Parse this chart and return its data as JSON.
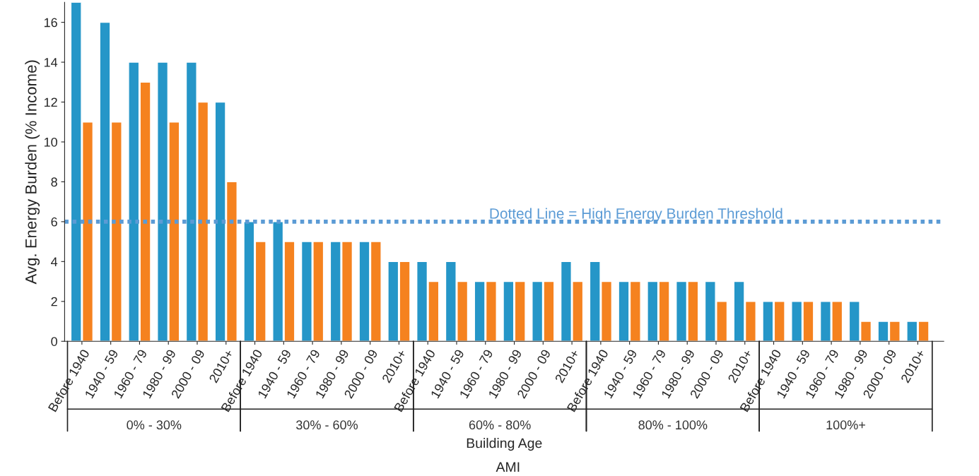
{
  "chart_data": {
    "type": "bar",
    "xlabel": "Building Age",
    "ylabel": "Avg. Energy Burden (% Income)",
    "categories": [
      "Before 1940",
      "1940 - 59",
      "1960 - 79",
      "1980 - 99",
      "2000 - 09",
      "2010+",
      "Before 1940",
      "1940 - 59",
      "1960 - 79",
      "1980 - 99",
      "2000 - 09",
      "2010+",
      "Before 1940",
      "1940 - 59",
      "1960 - 79",
      "1980 - 99",
      "2000 - 09",
      "2010+",
      "Before 1940",
      "1940 - 59",
      "1960 - 79",
      "1980 - 99",
      "2000 - 09",
      "2010+",
      "Before 1940",
      "1940 - 59",
      "1960 - 79",
      "1980 - 99",
      "2000 - 09",
      "2010+"
    ],
    "series": [
      {
        "color": "#2596c8",
        "values": [
          17,
          16,
          14,
          14,
          14,
          12,
          6,
          6,
          5,
          5,
          5,
          4,
          4,
          4,
          3,
          3,
          3,
          4,
          4,
          3,
          3,
          3,
          3,
          3,
          2,
          2,
          2,
          2,
          1,
          1
        ]
      },
      {
        "color": "#f5821f",
        "values": [
          11,
          11,
          13,
          11,
          12,
          8,
          5,
          5,
          5,
          5,
          5,
          4,
          3,
          3,
          3,
          3,
          3,
          3,
          3,
          3,
          3,
          3,
          2,
          2,
          2,
          2,
          2,
          1,
          1,
          1
        ]
      }
    ],
    "ylim": [
      0,
      17
    ],
    "yticks": [
      0,
      2,
      4,
      6,
      8,
      10,
      12,
      14,
      16
    ],
    "ref_lines": [
      {
        "axis": "y",
        "value": 6,
        "label": "Dotted Line = High Energy Burden Threshold",
        "color": "#5b9bd5",
        "line_style": "dotted"
      }
    ],
    "annotations": [
      "0% - 30%",
      "30% - 60%",
      "60% - 80%",
      "80% - 100%",
      "100%+",
      "AMI"
    ],
    "grid": false,
    "legend": false
  }
}
